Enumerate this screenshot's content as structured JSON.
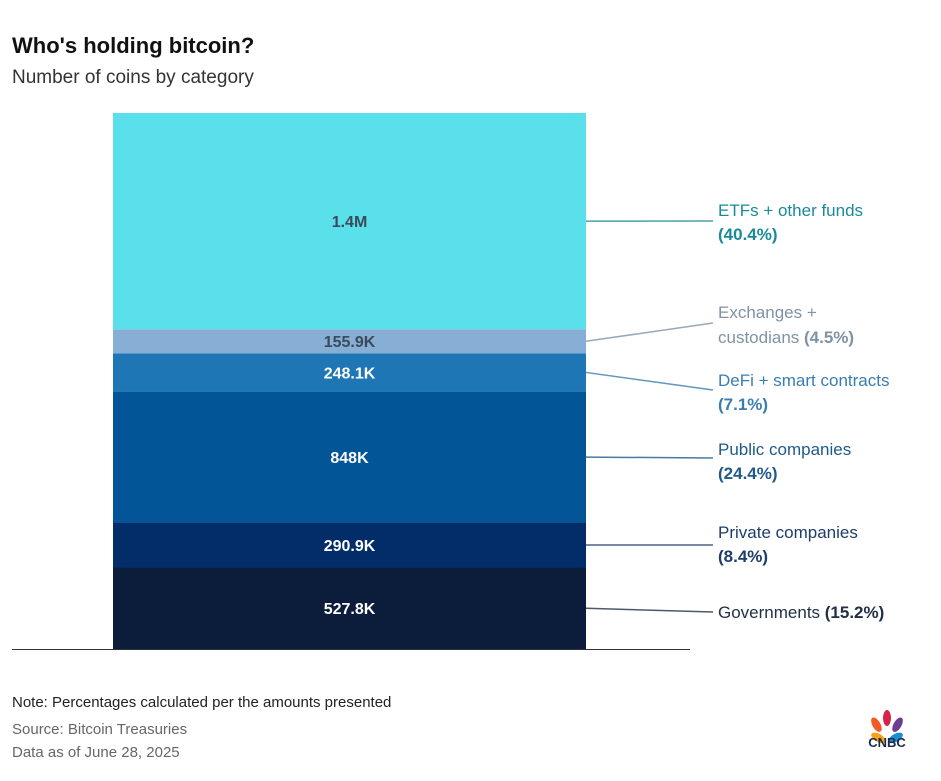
{
  "title": "Who's holding bitcoin?",
  "subtitle": "Number of coins by category",
  "chart_data": {
    "type": "bar",
    "stacked": true,
    "xlabel": "",
    "ylabel": "",
    "grid": false,
    "segments": [
      {
        "label_line1": "Governments",
        "pct": "(15.2%)",
        "value": 527.8,
        "value_label": "527.8K",
        "color": "#0b1d3a",
        "text_color": "#222f45",
        "value_text_color": "#ffffff"
      },
      {
        "label_line1": "Private companies",
        "pct": "(8.4%)",
        "value": 290.9,
        "value_label": "290.9K",
        "color": "#022d69",
        "text_color": "#1d3d6a",
        "value_text_color": "#ffffff"
      },
      {
        "label_line1": "Public companies",
        "pct": "(24.4%)",
        "value": 848,
        "value_label": "848K",
        "color": "#025697",
        "text_color": "#1f5a8a",
        "value_text_color": "#ffffff"
      },
      {
        "label_line1": "DeFi + smart contracts",
        "pct": "(7.1%)",
        "value": 248.1,
        "value_label": "248.1K",
        "color": "#1f76b5",
        "text_color": "#3a7eb0",
        "value_text_color": "#ffffff"
      },
      {
        "label_line1": "Exchanges +",
        "label_line2": "custodians",
        "pct": "(4.5%)",
        "value": 155.9,
        "value_label": "155.9K",
        "color": "#87afd6",
        "text_color": "#7f93a3",
        "value_text_color": "#3a4a5a"
      },
      {
        "label_line1": "ETFs + other funds",
        "pct": "(40.4%)",
        "value": 1400,
        "value_label": "1.4M",
        "color": "#5ae0ea",
        "text_color": "#1a8a9a",
        "value_text_color": "#3a4a5a"
      }
    ],
    "unit": "thousand coins"
  },
  "footer": {
    "note": "Note: Percentages calculated per the amounts presented",
    "source": "Source: Bitcoin Treasuries",
    "date": "Data as of June 28, 2025"
  },
  "logo": "CNBC"
}
